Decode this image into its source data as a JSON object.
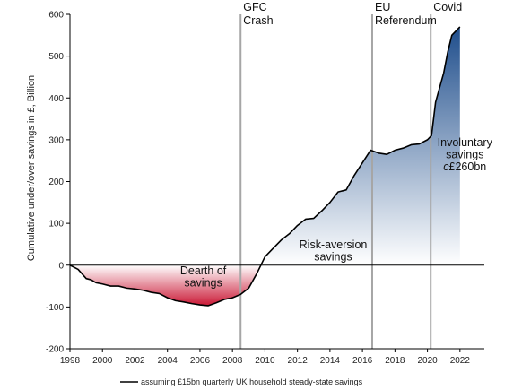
{
  "chart_data": {
    "type": "area",
    "ylabel": "Cumulative under/over savings in £, Billion",
    "xlabel": "",
    "xlim": [
      1998,
      2023.5
    ],
    "ylim": [
      -200,
      600
    ],
    "x_ticks": [
      1998,
      2000,
      2002,
      2004,
      2006,
      2008,
      2010,
      2012,
      2014,
      2016,
      2018,
      2020,
      2022
    ],
    "y_ticks": [
      -200,
      -100,
      0,
      100,
      200,
      300,
      400,
      500,
      600
    ],
    "grid": false,
    "legend_position": "bottom-center",
    "colors": {
      "positive_fill_top": "#1f4e8c",
      "positive_fill_bottom": "#ffffff",
      "negative_fill_top": "#ffffff",
      "negative_fill_bottom": "#c8102e",
      "line": "#000000",
      "event_line": "#a6a6a6"
    },
    "series": [
      {
        "name": "assuming £15bn quarterly UK household steady-state savings",
        "x": [
          1998.0,
          1998.5,
          1999.0,
          1999.3,
          1999.6,
          2000.0,
          2000.5,
          2001.0,
          2001.5,
          2002.0,
          2002.5,
          2003.0,
          2003.5,
          2004.0,
          2004.5,
          2005.0,
          2005.5,
          2006.0,
          2006.5,
          2007.0,
          2007.5,
          2008.0,
          2008.5,
          2009.0,
          2009.5,
          2010.0,
          2010.5,
          2011.0,
          2011.5,
          2012.0,
          2012.5,
          2013.0,
          2013.5,
          2014.0,
          2014.5,
          2015.0,
          2015.5,
          2016.0,
          2016.5,
          2017.0,
          2017.5,
          2018.0,
          2018.5,
          2019.0,
          2019.5,
          2020.0,
          2020.25,
          2020.5,
          2021.0,
          2021.25,
          2021.5,
          2022.0
        ],
        "values": [
          0,
          -10,
          -32,
          -35,
          -42,
          -45,
          -50,
          -50,
          -55,
          -57,
          -60,
          -65,
          -68,
          -78,
          -85,
          -88,
          -92,
          -95,
          -97,
          -90,
          -82,
          -78,
          -70,
          -55,
          -20,
          20,
          40,
          60,
          75,
          95,
          110,
          112,
          130,
          150,
          175,
          180,
          215,
          245,
          275,
          268,
          265,
          275,
          280,
          288,
          290,
          300,
          310,
          390,
          460,
          510,
          550,
          570
        ]
      }
    ],
    "events": [
      {
        "x": 2008.5,
        "label_line1": "GFC",
        "label_line2": "Crash"
      },
      {
        "x": 2016.6,
        "label_line1": "EU",
        "label_line2": "Referendum"
      },
      {
        "x": 2020.2,
        "label_line1": "Covid",
        "label_line2": ""
      }
    ],
    "annotations": [
      {
        "line1": "Dearth of",
        "line2": "savings",
        "line3": "",
        "x": 2006.2,
        "y": -22
      },
      {
        "line1": "Risk-aversion",
        "line2": "savings",
        "line3": "",
        "x": 2014.2,
        "y": 40
      },
      {
        "line1": "Involuntary",
        "line2": "savings",
        "line3": "c£260bn",
        "x": 2022.3,
        "y": 285
      }
    ]
  }
}
